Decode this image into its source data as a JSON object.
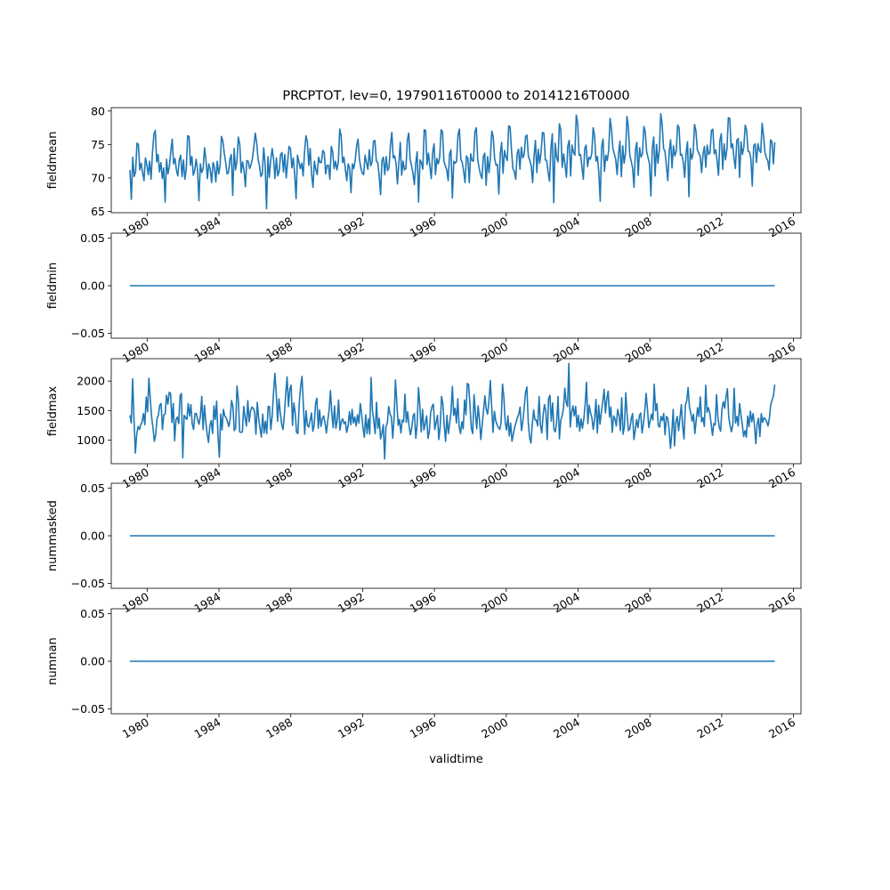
{
  "figure": {
    "title": "PRCPTOT, lev=0, 19790116T0000 to 20141216T0000",
    "xlabel": "validtime",
    "line_color": "#1f77b4",
    "x_tick_labels": [
      "1980",
      "1984",
      "1988",
      "1992",
      "1996",
      "2000",
      "2004",
      "2008",
      "2012",
      "2016"
    ]
  },
  "chart_data": [
    {
      "type": "line",
      "ylabel": "fieldmean",
      "x_range": [
        "1978-01-01",
        "2016-06-01"
      ],
      "x_start": "1979-01-16",
      "x_end": "2014-12-16",
      "x_step": "monthly",
      "ylim": [
        64.8,
        80.5
      ],
      "y_ticks": [
        65,
        70,
        75,
        80
      ],
      "y_tick_labels": [
        "65",
        "70",
        "75",
        "80"
      ],
      "series": [
        {
          "values": [
            71.2,
            66.8,
            73.1,
            70.2,
            70.9,
            75.2,
            75.0,
            71.2,
            72.2,
            70.8,
            69.6,
            73.0,
            72.0,
            70.5,
            72.5,
            69.8,
            73.8,
            76.5,
            77.1,
            72.4,
            73.5,
            70.9,
            72.3,
            69.9,
            71.5,
            66.4,
            72.8,
            70.6,
            71.7,
            73.9,
            75.8,
            72.1,
            72.9,
            71.2,
            70.3,
            72.6,
            73.4,
            70.2,
            72.7,
            69.8,
            71.3,
            76.3,
            76.2,
            71.9,
            73.2,
            70.4,
            71.1,
            72.8,
            71.2,
            66.6,
            72.1,
            70.8,
            71.4,
            74.5,
            72.7,
            69.9,
            72.1,
            71.3,
            69.3,
            72.3,
            71.6,
            69.4,
            72.5,
            70.6,
            71.8,
            76.2,
            75.5,
            73.7,
            72.3,
            70.6,
            70.8,
            72.8,
            73.5,
            67.4,
            74.4,
            71.2,
            72.5,
            76.1,
            75.0,
            70.8,
            72.4,
            71.2,
            68.7,
            72.6,
            72.5,
            71.4,
            72.0,
            72.9,
            74.7,
            76.7,
            75.3,
            72.8,
            71.8,
            70.2,
            70.6,
            74.5,
            72.1,
            65.4,
            73.2,
            70.1,
            72.7,
            74.4,
            72.8,
            69.9,
            73.0,
            70.3,
            71.0,
            73.5,
            73.8,
            70.9,
            73.5,
            70.0,
            72.4,
            74.7,
            74.4,
            71.5,
            73.0,
            70.6,
            66.9,
            73.4,
            72.4,
            71.4,
            72.2,
            70.3,
            73.8,
            76.3,
            75.4,
            71.9,
            74.4,
            70.6,
            68.6,
            72.5,
            71.3,
            70.5,
            73.1,
            72.3,
            72.3,
            74.1,
            73.8,
            70.6,
            71.9,
            71.9,
            69.8,
            74.7,
            73.9,
            71.4,
            72.5,
            71.2,
            72.4,
            77.3,
            76.3,
            72.3,
            73.1,
            71.3,
            69.6,
            72.1,
            71.5,
            67.8,
            72.1,
            71.4,
            72.7,
            74.8,
            75.8,
            72.8,
            71.5,
            70.7,
            70.5,
            73.4,
            72.3,
            71.3,
            74.2,
            71.8,
            72.4,
            75.5,
            75.6,
            72.5,
            72.3,
            70.4,
            67.5,
            72.6,
            73.1,
            70.5,
            73.2,
            71.1,
            71.5,
            74.9,
            76.8,
            73.0,
            73.3,
            72.2,
            69.1,
            72.3,
            75.3,
            70.4,
            72.5,
            71.2,
            71.4,
            75.6,
            76.7,
            72.8,
            71.8,
            70.7,
            69.0,
            72.2,
            73.9,
            66.4,
            72.7,
            72.3,
            71.3,
            77.2,
            77.1,
            72.0,
            73.7,
            71.8,
            69.9,
            73.8,
            75.1,
            70.5,
            72.9,
            72.1,
            73.1,
            77.2,
            76.9,
            72.5,
            71.8,
            71.2,
            69.6,
            73.6,
            74.2,
            67.0,
            72.5,
            72.2,
            72.5,
            76.4,
            77.3,
            72.8,
            72.3,
            71.0,
            69.3,
            73.3,
            72.9,
            69.3,
            73.6,
            72.6,
            72.5,
            76.9,
            77.5,
            72.7,
            71.5,
            70.5,
            69.9,
            73.2,
            73.7,
            68.9,
            73.2,
            70.8,
            73.1,
            77.0,
            76.2,
            72.9,
            71.9,
            72.0,
            67.6,
            73.5,
            75.3,
            70.7,
            74.1,
            73.1,
            72.6,
            77.8,
            77.6,
            74.1,
            71.4,
            71.0,
            69.8,
            73.6,
            74.3,
            71.3,
            74.6,
            73.0,
            73.5,
            76.2,
            76.4,
            73.2,
            72.6,
            71.8,
            69.3,
            73.2,
            75.6,
            70.8,
            74.3,
            72.2,
            73.8,
            76.8,
            76.7,
            72.7,
            72.6,
            70.8,
            69.5,
            74.4,
            76.6,
            66.3,
            75.2,
            73.1,
            72.4,
            78.1,
            77.2,
            71.6,
            73.6,
            72.0,
            70.1,
            74.8,
            75.6,
            70.3,
            74.9,
            73.8,
            73.4,
            79.4,
            78.2,
            73.4,
            73.5,
            71.7,
            69.8,
            74.4,
            74.9,
            71.7,
            73.1,
            72.8,
            73.7,
            77.5,
            76.3,
            72.5,
            73.2,
            70.8,
            66.5,
            74.6,
            75.8,
            71.0,
            73.4,
            72.6,
            74.1,
            78.9,
            77.3,
            74.4,
            73.6,
            72.8,
            70.5,
            73.5,
            75.5,
            70.2,
            74.8,
            72.2,
            73.8,
            79.2,
            77.6,
            73.4,
            72.5,
            71.5,
            68.6,
            74.2,
            75.3,
            70.4,
            74.5,
            73.1,
            73.6,
            77.7,
            76.9,
            73.9,
            73.0,
            72.1,
            67.3,
            74.5,
            76.1,
            70.3,
            75.0,
            72.2,
            74.2,
            79.6,
            78.0,
            74.4,
            74.0,
            71.8,
            69.6,
            73.9,
            75.7,
            71.5,
            74.8,
            73.3,
            74.0,
            77.9,
            77.5,
            73.4,
            73.5,
            72.3,
            70.1,
            73.8,
            75.4,
            67.2,
            74.4,
            72.8,
            73.7,
            78.0,
            77.0,
            74.2,
            73.7,
            73.3,
            70.8,
            73.5,
            74.7,
            71.6,
            74.9,
            73.5,
            73.8,
            77.1,
            77.3,
            73.6,
            74.2,
            72.6,
            70.4,
            75.6,
            76.6,
            71.3,
            75.1,
            72.7,
            74.3,
            79.0,
            78.9,
            74.5,
            75.1,
            73.0,
            71.4,
            75.6,
            75.9,
            70.1,
            75.4,
            73.5,
            74.6,
            77.9,
            77.1,
            74.0,
            73.9,
            72.9,
            68.8,
            74.8,
            75.1,
            72.3,
            75.1,
            74.1,
            73.8,
            78.2,
            76.3,
            73.8,
            73.0,
            72.6,
            71.2,
            75.7,
            75.4,
            72.1,
            75.3
          ]
        }
      ]
    },
    {
      "type": "line",
      "ylabel": "fieldmin",
      "x_range": [
        "1978-01-01",
        "2016-06-01"
      ],
      "x_start": "1979-01-16",
      "x_end": "2014-12-16",
      "ylim": [
        -0.055,
        0.055
      ],
      "y_ticks": [
        -0.05,
        0,
        0.05
      ],
      "y_tick_labels": [
        "−0.05",
        "0.00",
        "0.05"
      ],
      "series": [
        {
          "constant": 0
        }
      ]
    },
    {
      "type": "line",
      "ylabel": "fieldmax",
      "x_range": [
        "1978-01-01",
        "2016-06-01"
      ],
      "x_start": "1979-01-16",
      "x_end": "2014-12-16",
      "x_step": "monthly",
      "ylim": [
        600,
        2380
      ],
      "y_ticks": [
        1000,
        1500,
        2000
      ],
      "y_tick_labels": [
        "1000",
        "1500",
        "2000"
      ],
      "series": [
        {
          "values": [
            1420,
            1290,
            2040,
            1350,
            780,
            1100,
            1230,
            1180,
            1260,
            1310,
            1450,
            1260,
            1730,
            1480,
            2050,
            1700,
            1390,
            1210,
            980,
            1090,
            1360,
            1430,
            1590,
            1620,
            1180,
            1430,
            1440,
            1760,
            1610,
            1810,
            1790,
            1300,
            1620,
            990,
            1350,
            1390,
            1280,
            1750,
            1790,
            700,
            1420,
            1380,
            1350,
            1620,
            1410,
            1600,
            1270,
            1180,
            1450,
            1450,
            1340,
            1270,
            1410,
            1740,
            1180,
            1590,
            1310,
            1100,
            960,
            1250,
            1330,
            1110,
            1580,
            1350,
            1660,
            1070,
            710,
            1440,
            1170,
            1520,
            1410,
            1380,
            1310,
            1230,
            1360,
            1670,
            1570,
            1160,
            1200,
            1920,
            1690,
            1140,
            1130,
            1140,
            1570,
            1380,
            1240,
            1670,
            1310,
            1490,
            1560,
            1540,
            1480,
            1100,
            1640,
            1370,
            1200,
            1050,
            1440,
            1120,
            1320,
            1110,
            1570,
            1570,
            1180,
            1410,
            1810,
            2130,
            1790,
            1320,
            1700,
            1450,
            1270,
            1180,
            1430,
            1790,
            2070,
            1570,
            1860,
            1930,
            1250,
            1630,
            1460,
            1130,
            1110,
            1640,
            1910,
            2080,
            1610,
            1100,
            1500,
            1250,
            1220,
            1330,
            1460,
            1150,
            1250,
            1620,
            1710,
            1200,
            1510,
            1230,
            1360,
            1410,
            1290,
            1120,
            1330,
            1500,
            1840,
            1460,
            1210,
            1580,
            1200,
            1340,
            1680,
            1170,
            1310,
            1360,
            1280,
            1310,
            1130,
            1240,
            1480,
            1260,
            1520,
            1290,
            1390,
            1240,
            1430,
            1290,
            1620,
            1450,
            1210,
            1050,
            1430,
            1110,
            1360,
            1100,
            2060,
            1510,
            1320,
            1110,
            1640,
            1200,
            1370,
            1020,
            1120,
            1260,
            680,
            1230,
            1290,
            1570,
            1440,
            1390,
            1030,
            1380,
            2020,
            1620,
            1250,
            1350,
            1120,
            1340,
            1310,
            1780,
            1300,
            1480,
            1250,
            1090,
            1200,
            1410,
            1450,
            1030,
            1260,
            1890,
            1590,
            1140,
            1520,
            1170,
            1280,
            1410,
            1030,
            1150,
            1470,
            1570,
            1610,
            1180,
            1300,
            1420,
            1010,
            1230,
            1740,
            1610,
            1240,
            980,
            1420,
            1110,
            1280,
            1470,
            1910,
            1420,
            1540,
            1290,
            1700,
            1230,
            1110,
            1310,
            1190,
            1680,
            1430,
            1960,
            1940,
            1590,
            1200,
            1110,
            1770,
            1460,
            1190,
            1580,
            1350,
            1010,
            1260,
            1500,
            1750,
            1520,
            1440,
            1660,
            2010,
            1570,
            1130,
            1490,
            1330,
            1260,
            1210,
            1180,
            1300,
            1950,
            1730,
            1300,
            1170,
            1410,
            1070,
            1290,
            980,
            1100,
            1220,
            1300,
            1380,
            1440,
            1560,
            1160,
            1310,
            1550,
            1810,
            1900,
            1310,
            1040,
            950,
            1270,
            1510,
            1340,
            1340,
            1240,
            1740,
            1260,
            1120,
            1430,
            1600,
            1490,
            1010,
            1700,
            1760,
            1320,
            1630,
            1180,
            1140,
            1310,
            1740,
            1020,
            1330,
            1410,
            1540,
            1880,
            1640,
            1570,
            2300,
            1220,
            1470,
            1580,
            1410,
            1570,
            1220,
            1420,
            1150,
            1360,
            1200,
            1350,
            1600,
            1980,
            1280,
            1590,
            1460,
            1380,
            1180,
            1360,
            1690,
            1120,
            1590,
            1270,
            1480,
            1650,
            1860,
            1460,
            1700,
            1830,
            1390,
            1560,
            1130,
            1410,
            1360,
            1240,
            1520,
            1420,
            1160,
            1720,
            1100,
            1230,
            1800,
            1420,
            1160,
            1190,
            1360,
            1450,
            1010,
            1170,
            1350,
            1210,
            1410,
            1460,
            1120,
            1270,
            1490,
            1790,
            1530,
            1210,
            1330,
            1440,
            1340,
            1950,
            1500,
            1620,
            1250,
            1220,
            1400,
            1330,
            1450,
            1090,
            1400,
            1370,
            1170,
            860,
            1130,
            1520,
            900,
            1310,
            1400,
            1160,
            1380,
            1600,
            1230,
            1020,
            1590,
            1670,
            1890,
            1560,
            1450,
            1320,
            1440,
            1110,
            1340,
            1550,
            1400,
            1730,
            1310,
            1380,
            1230,
            1930,
            1470,
            1550,
            1460,
            1280,
            1080,
            1280,
            1260,
            1770,
            1380,
            1220,
            1150,
            1530,
            1650,
            1540,
            1730,
            1870,
            1390,
            1250,
            1140,
            1260,
            1880,
            1290,
            1400,
            1240,
            1620,
            1430,
            1260,
            1060,
            1160,
            1050,
            1410,
            1230,
            1490,
            1310,
            1450,
            1250,
            940,
            1280,
            1370,
            1060,
            1450,
            1300,
            1380,
            1360,
            1310,
            1240,
            1370,
            1600,
            1680,
            1750,
            1940
          ]
        }
      ]
    },
    {
      "type": "line",
      "ylabel": "nummasked",
      "x_range": [
        "1978-01-01",
        "2016-06-01"
      ],
      "x_start": "1979-01-16",
      "x_end": "2014-12-16",
      "ylim": [
        -0.055,
        0.055
      ],
      "y_ticks": [
        -0.05,
        0,
        0.05
      ],
      "y_tick_labels": [
        "−0.05",
        "0.00",
        "0.05"
      ],
      "series": [
        {
          "constant": 0
        }
      ]
    },
    {
      "type": "line",
      "ylabel": "numnan",
      "x_range": [
        "1978-01-01",
        "2016-06-01"
      ],
      "x_start": "1979-01-16",
      "x_end": "2014-12-16",
      "ylim": [
        -0.055,
        0.055
      ],
      "y_ticks": [
        -0.05,
        0,
        0.05
      ],
      "y_tick_labels": [
        "−0.05",
        "0.00",
        "0.05"
      ],
      "series": [
        {
          "constant": 0
        }
      ]
    }
  ]
}
